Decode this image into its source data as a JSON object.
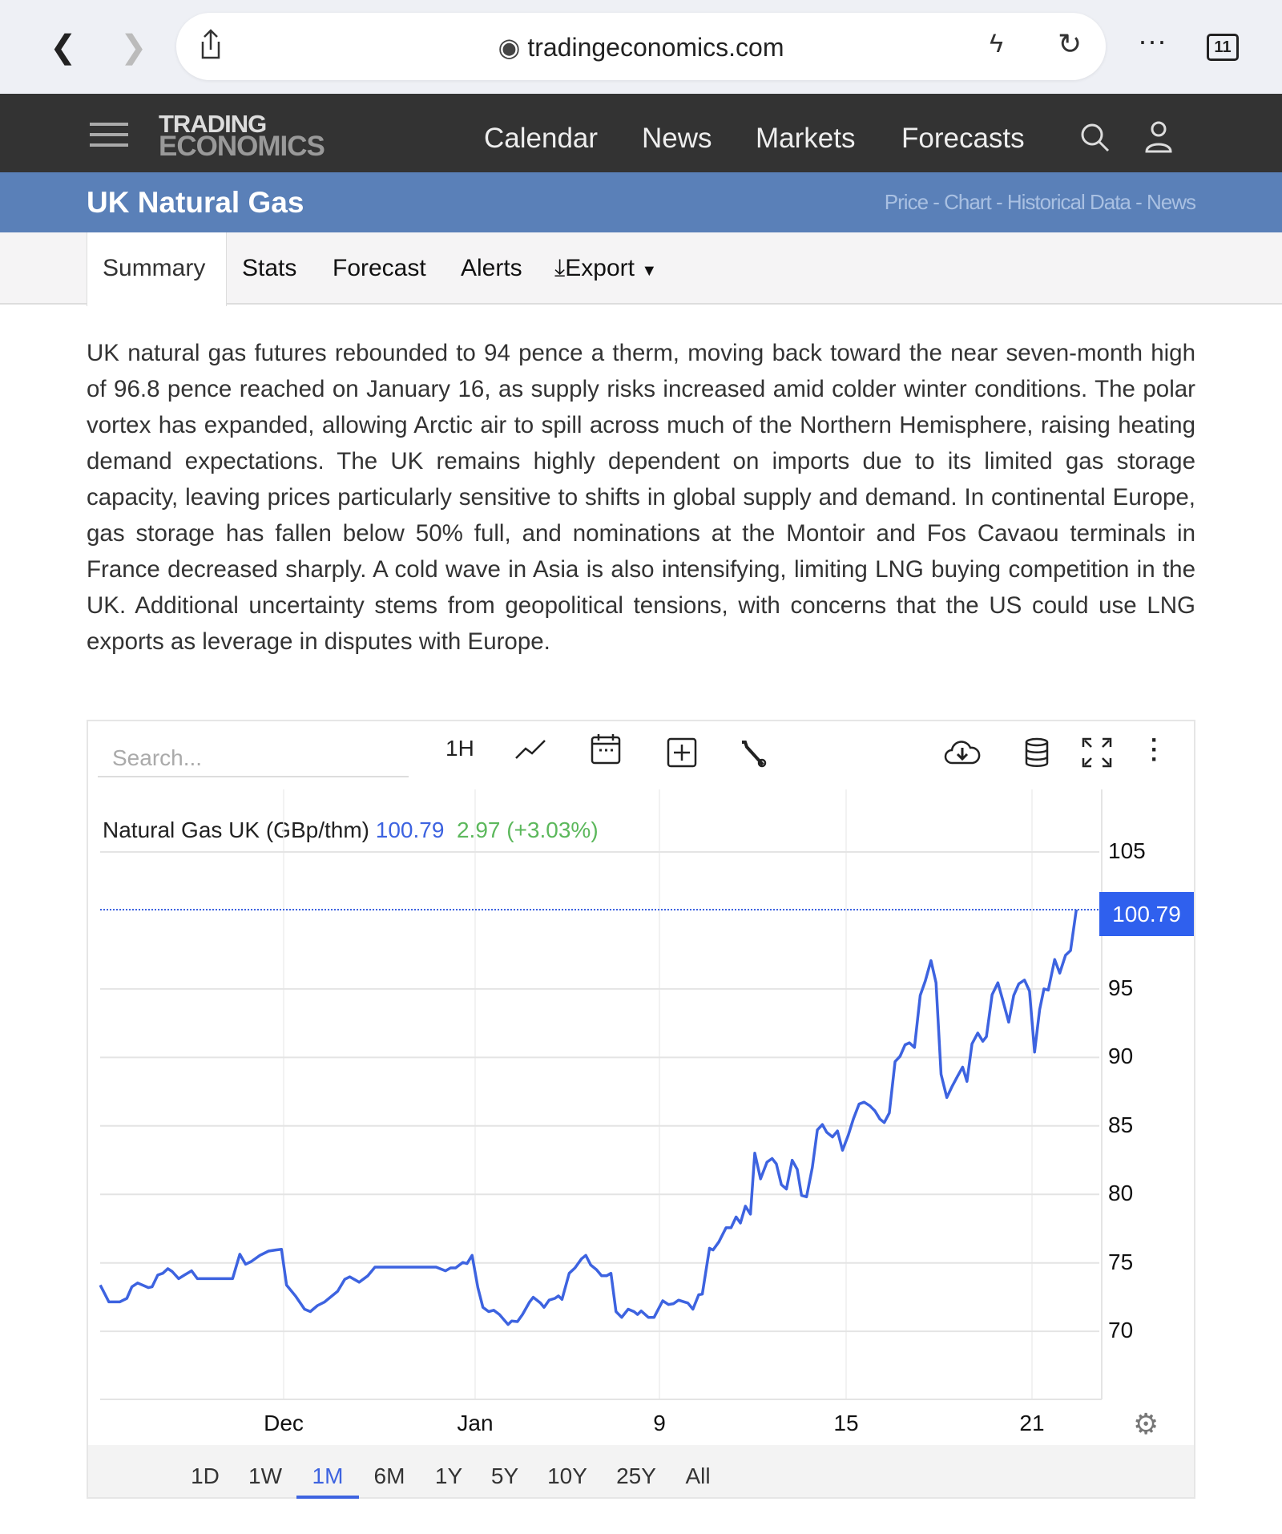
{
  "browser": {
    "url": "tradingeconomics.com",
    "tab_count": "11"
  },
  "nav": {
    "logo_top": "TRADING",
    "logo_bottom": "ECONOMICS",
    "items": [
      "Calendar",
      "News",
      "Markets",
      "Forecasts"
    ]
  },
  "header": {
    "title": "UK Natural Gas",
    "links": "Price - Chart - Historical Data - News"
  },
  "tabs": [
    "Summary",
    "Stats",
    "Forecast",
    "Alerts",
    "Export"
  ],
  "summary": "UK natural gas futures rebounded to 94 pence a therm, moving back toward the near seven-month high of 96.8 pence reached on January 16, as supply risks increased amid colder winter conditions. The polar vortex has expanded, allowing Arctic air to spill across much of the Northern Hemisphere, raising heating demand expectations. The UK remains highly dependent on imports due to its limited gas storage capacity, leaving prices particularly sensitive to shifts in global supply and demand. In continental Europe, gas storage has fallen below 50% full, and nominations at the Montoir and Fos Cavaou terminals in France decreased sharply. A cold wave in Asia is also intensifying, limiting LNG buying competition in the UK. Additional uncertainty stems from geopolitical tensions, with concerns that the US could use LNG exports as leverage in disputes with Europe.",
  "chart_toolbar": {
    "search_placeholder": "Search...",
    "interval": "1H"
  },
  "ranges": [
    "1D",
    "1W",
    "1M",
    "6M",
    "1Y",
    "5Y",
    "10Y",
    "25Y",
    "All"
  ],
  "active_range": "1M",
  "chart_data": {
    "type": "line",
    "series_label": "Natural Gas UK (GBp/thm)",
    "last": "100.79",
    "change": "2.97 (+3.03%)",
    "color": "#3d63e0",
    "change_color": "#5cb85c",
    "ylim": [
      65,
      107
    ],
    "yticks": [
      70,
      75,
      80,
      85,
      90,
      95,
      105
    ],
    "xticks": [
      "Dec",
      "Jan",
      "9",
      "15",
      "21"
    ],
    "values": [
      73.38,
      72.15,
      72.15,
      72.41,
      73.25,
      73.53,
      73.19,
      73.25,
      74.11,
      74.24,
      74.58,
      74.37,
      73.85,
      74.11,
      74.42,
      73.85,
      73.85,
      73.85,
      73.85,
      73.85,
      73.85,
      73.85,
      75.63,
      74.9,
      75.1,
      75.55,
      75.86,
      75.94,
      75.99,
      73.38,
      72.54,
      71.62,
      71.44,
      71.88,
      72.15,
      72.93,
      73.8,
      73.98,
      73.59,
      74.06,
      74.69,
      74.69,
      74.69,
      74.69,
      74.69,
      74.69,
      74.69,
      74.69,
      74.69,
      74.69,
      74.69,
      74.42,
      74.63,
      74.63,
      75.03,
      74.95,
      75.55,
      73.19,
      71.75,
      71.44,
      71.54,
      71.23,
      70.5,
      70.76,
      70.71,
      71.23,
      72.15,
      72.49,
      72.07,
      71.75,
      72.28,
      72.41,
      72.59,
      72.33,
      74.24,
      74.63,
      75.29,
      75.55,
      74.84,
      74.5,
      74.06,
      74.06,
      74.24,
      71.44,
      71.02,
      71.62,
      71.44,
      71.23,
      71.49,
      71.02,
      71.02,
      72.23,
      71.96,
      72.02,
      72.28,
      72.15,
      72.07,
      71.62,
      72.67,
      72.72,
      76.07,
      75.94,
      76.52,
      77.56,
      77.56,
      78.35,
      77.91,
      79.14,
      78.56,
      83.01,
      81.13,
      82.36,
      82.62,
      82.23,
      80.71,
      80.39,
      82.49,
      81.83,
      79.92,
      79.82,
      81.96,
      84.71,
      85.1,
      84.53,
      84.19,
      84.63,
      83.22,
      84.32,
      85.5,
      86.6,
      86.73,
      86.47,
      86.1,
      85.5,
      85.24,
      85.94,
      89.69,
      90.08,
      90.92,
      91.07,
      90.73,
      94.53,
      95.58,
      97.07,
      95.45,
      88.77,
      87.07,
      87.85,
      88.64,
      89.29,
      88.25,
      90.99,
      91.78,
      91.18,
      91.52,
      94.58,
      95.45,
      94.14,
      92.57,
      94.53,
      95.37,
      95.65,
      94.84,
      90.39,
      93.48,
      95.0,
      94.92,
      97.15,
      96.15,
      97.46,
      97.8,
      100.79
    ],
    "grid": true
  }
}
